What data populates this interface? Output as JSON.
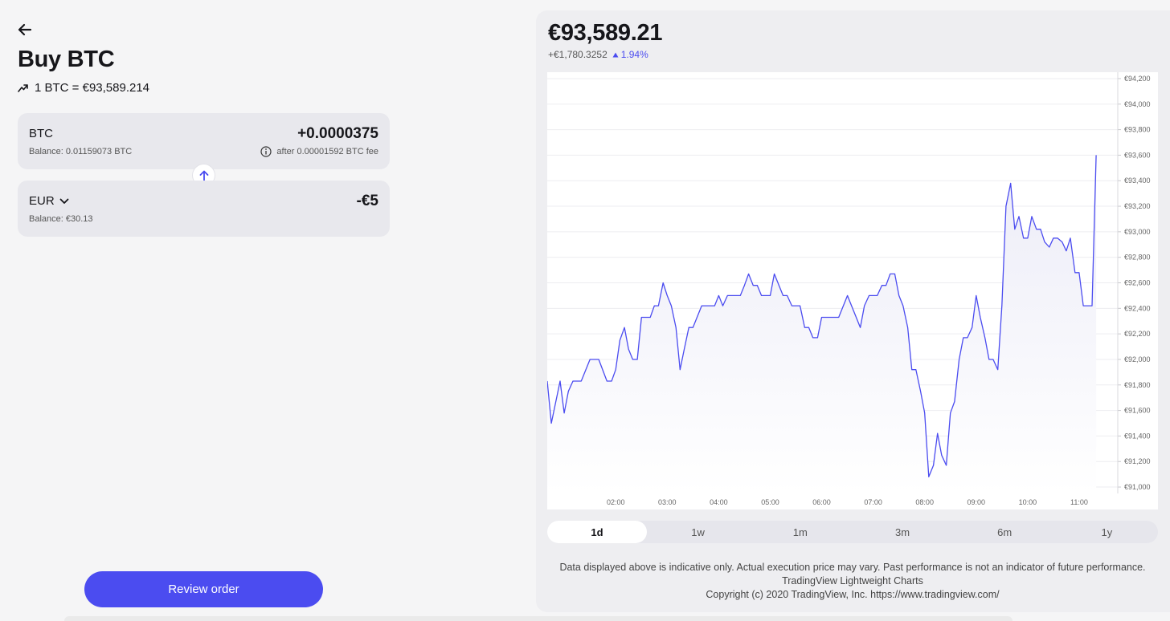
{
  "page": {
    "title": "Buy BTC",
    "rate_text": "1 BTC = €93,589.214",
    "review_button": "Review order"
  },
  "from_card": {
    "asset": "BTC",
    "amount": "+0.0000375",
    "balance": "Balance: 0.01159073 BTC",
    "fee": "after 0.00001592 BTC fee"
  },
  "to_card": {
    "asset": "EUR",
    "amount": "-€5",
    "balance": "Balance: €30.13"
  },
  "price_panel": {
    "price": "€93,589.21",
    "change_abs": "+€1,780.3252",
    "change_pct": "1.94%",
    "accent": "#4b4cf0",
    "ranges": [
      {
        "label": "1d",
        "active": true
      },
      {
        "label": "1w",
        "active": false
      },
      {
        "label": "1m",
        "active": false
      },
      {
        "label": "3m",
        "active": false
      },
      {
        "label": "6m",
        "active": false
      },
      {
        "label": "1y",
        "active": false
      }
    ],
    "disclaimer": [
      "Data displayed above is indicative only. Actual execution price may vary. Past performance is not an indicator of future performance.",
      "TradingView Lightweight Charts",
      "Copyright (c) 2020 TradingView, Inc. https://www.tradingview.com/"
    ]
  },
  "chart_data": {
    "type": "area",
    "ylim": [
      90950,
      94250
    ],
    "y_ticks": [
      {
        "v": 91000,
        "label": "€91,000"
      },
      {
        "v": 91200,
        "label": "€91,200"
      },
      {
        "v": 91400,
        "label": "€91,400"
      },
      {
        "v": 91600,
        "label": "€91,600"
      },
      {
        "v": 91800,
        "label": "€91,800"
      },
      {
        "v": 92000,
        "label": "€92,000"
      },
      {
        "v": 92200,
        "label": "€92,200"
      },
      {
        "v": 92400,
        "label": "€92,400"
      },
      {
        "v": 92600,
        "label": "€92,600"
      },
      {
        "v": 92800,
        "label": "€92,800"
      },
      {
        "v": 93000,
        "label": "€93,000"
      },
      {
        "v": 93200,
        "label": "€93,200"
      },
      {
        "v": 93400,
        "label": "€93,400"
      },
      {
        "v": 93600,
        "label": "€93,600"
      },
      {
        "v": 93800,
        "label": "€93,800"
      },
      {
        "v": 94000,
        "label": "€94,000"
      },
      {
        "v": 94200,
        "label": "€94,200"
      }
    ],
    "x_ticks": [
      {
        "t": 2,
        "label": "02:00"
      },
      {
        "t": 3,
        "label": "03:00"
      },
      {
        "t": 4,
        "label": "04:00"
      },
      {
        "t": 5,
        "label": "05:00"
      },
      {
        "t": 6,
        "label": "06:00"
      },
      {
        "t": 7,
        "label": "07:00"
      },
      {
        "t": 8,
        "label": "08:00"
      },
      {
        "t": 9,
        "label": "09:00"
      },
      {
        "t": 10,
        "label": "10:00"
      },
      {
        "t": 11,
        "label": "11:00"
      }
    ],
    "xlim": [
      0.67,
      11.75
    ],
    "series": [
      {
        "points": [
          [
            0.67,
            91830
          ],
          [
            0.75,
            91500
          ],
          [
            0.92,
            91830
          ],
          [
            1.0,
            91580
          ],
          [
            1.08,
            91750
          ],
          [
            1.17,
            91830
          ],
          [
            1.33,
            91830
          ],
          [
            1.5,
            92000
          ],
          [
            1.67,
            92000
          ],
          [
            1.83,
            91830
          ],
          [
            1.92,
            91830
          ],
          [
            2.0,
            91920
          ],
          [
            2.08,
            92150
          ],
          [
            2.17,
            92250
          ],
          [
            2.25,
            92080
          ],
          [
            2.33,
            92000
          ],
          [
            2.42,
            92000
          ],
          [
            2.5,
            92330
          ],
          [
            2.67,
            92330
          ],
          [
            2.75,
            92420
          ],
          [
            2.83,
            92420
          ],
          [
            2.92,
            92600
          ],
          [
            3.0,
            92500
          ],
          [
            3.08,
            92420
          ],
          [
            3.17,
            92250
          ],
          [
            3.25,
            91920
          ],
          [
            3.33,
            92080
          ],
          [
            3.42,
            92250
          ],
          [
            3.5,
            92250
          ],
          [
            3.67,
            92420
          ],
          [
            3.83,
            92420
          ],
          [
            3.92,
            92420
          ],
          [
            4.0,
            92500
          ],
          [
            4.08,
            92420
          ],
          [
            4.17,
            92500
          ],
          [
            4.33,
            92500
          ],
          [
            4.42,
            92500
          ],
          [
            4.5,
            92580
          ],
          [
            4.58,
            92670
          ],
          [
            4.67,
            92580
          ],
          [
            4.75,
            92580
          ],
          [
            4.83,
            92500
          ],
          [
            5.0,
            92500
          ],
          [
            5.08,
            92670
          ],
          [
            5.17,
            92580
          ],
          [
            5.25,
            92500
          ],
          [
            5.33,
            92500
          ],
          [
            5.42,
            92420
          ],
          [
            5.58,
            92420
          ],
          [
            5.67,
            92250
          ],
          [
            5.75,
            92250
          ],
          [
            5.83,
            92170
          ],
          [
            5.92,
            92170
          ],
          [
            6.0,
            92330
          ],
          [
            6.08,
            92330
          ],
          [
            6.25,
            92330
          ],
          [
            6.33,
            92330
          ],
          [
            6.42,
            92420
          ],
          [
            6.5,
            92500
          ],
          [
            6.58,
            92420
          ],
          [
            6.67,
            92330
          ],
          [
            6.75,
            92250
          ],
          [
            6.83,
            92420
          ],
          [
            6.92,
            92500
          ],
          [
            7.0,
            92500
          ],
          [
            7.08,
            92500
          ],
          [
            7.17,
            92580
          ],
          [
            7.25,
            92580
          ],
          [
            7.33,
            92670
          ],
          [
            7.42,
            92670
          ],
          [
            7.5,
            92500
          ],
          [
            7.58,
            92420
          ],
          [
            7.67,
            92250
          ],
          [
            7.75,
            91920
          ],
          [
            7.83,
            91920
          ],
          [
            7.92,
            91750
          ],
          [
            8.0,
            91580
          ],
          [
            8.08,
            91080
          ],
          [
            8.17,
            91170
          ],
          [
            8.25,
            91420
          ],
          [
            8.33,
            91250
          ],
          [
            8.42,
            91170
          ],
          [
            8.5,
            91580
          ],
          [
            8.58,
            91670
          ],
          [
            8.67,
            92000
          ],
          [
            8.75,
            92170
          ],
          [
            8.83,
            92170
          ],
          [
            8.92,
            92250
          ],
          [
            9.0,
            92500
          ],
          [
            9.08,
            92330
          ],
          [
            9.17,
            92170
          ],
          [
            9.25,
            92000
          ],
          [
            9.33,
            92000
          ],
          [
            9.42,
            91920
          ],
          [
            9.5,
            92420
          ],
          [
            9.58,
            93200
          ],
          [
            9.67,
            93380
          ],
          [
            9.75,
            93020
          ],
          [
            9.83,
            93120
          ],
          [
            9.92,
            92950
          ],
          [
            10.0,
            92950
          ],
          [
            10.08,
            93120
          ],
          [
            10.17,
            93020
          ],
          [
            10.25,
            93020
          ],
          [
            10.33,
            92920
          ],
          [
            10.42,
            92880
          ],
          [
            10.5,
            92950
          ],
          [
            10.58,
            92950
          ],
          [
            10.67,
            92920
          ],
          [
            10.75,
            92850
          ],
          [
            10.83,
            92950
          ],
          [
            10.92,
            92680
          ],
          [
            11.0,
            92680
          ],
          [
            11.08,
            92420
          ],
          [
            11.17,
            92420
          ],
          [
            11.25,
            92420
          ],
          [
            11.33,
            93600
          ]
        ]
      }
    ]
  }
}
